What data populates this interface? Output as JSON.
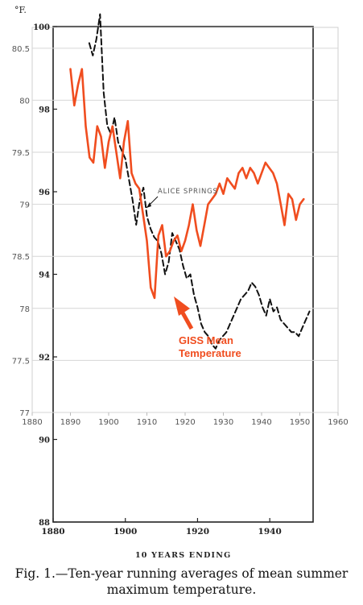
{
  "chart_data": {
    "type": "line",
    "unit_label": "°F.",
    "xlabel": "10 YEARS ENDING",
    "outer_axis": {
      "x_ticks": [
        1880,
        1900,
        1920,
        1940
      ],
      "y_ticks": [
        88,
        90,
        92,
        94,
        96,
        98,
        100
      ],
      "ylim": [
        88,
        100
      ],
      "xlim": [
        1880,
        1952
      ]
    },
    "inner_axis": {
      "x_ticks": [
        1880,
        1890,
        1900,
        1910,
        1920,
        1930,
        1940,
        1950,
        1960
      ],
      "y_ticks": [
        77,
        77.5,
        78,
        78.5,
        79,
        79.5,
        80,
        80.5
      ],
      "ylim": [
        77,
        80.7
      ],
      "xlim": [
        1880,
        1960
      ]
    },
    "series": [
      {
        "name": "ALICE SPRINGS",
        "axis": "outer",
        "style": "dashed",
        "color": "#111111",
        "x": [
          1890,
          1891,
          1892,
          1893,
          1894,
          1895,
          1896,
          1897,
          1898,
          1899,
          1900,
          1901,
          1902,
          1903,
          1904,
          1905,
          1906,
          1907,
          1908,
          1909,
          1910,
          1911,
          1912,
          1913,
          1914,
          1915,
          1916,
          1917,
          1918,
          1919,
          1920,
          1921,
          1922,
          1923,
          1924,
          1925,
          1926,
          1927,
          1928,
          1929,
          1930,
          1931,
          1932,
          1933,
          1934,
          1935,
          1936,
          1937,
          1938,
          1939,
          1940,
          1941,
          1942,
          1943,
          1944,
          1945,
          1946,
          1947,
          1948,
          1949,
          1950,
          1951
        ],
        "y": [
          99.6,
          99.3,
          99.7,
          100.3,
          98.4,
          97.6,
          97.4,
          97.8,
          97.2,
          97.0,
          96.8,
          96.3,
          95.8,
          95.2,
          95.8,
          96.1,
          95.4,
          95.1,
          94.9,
          94.8,
          94.5,
          94.0,
          94.3,
          95.0,
          94.8,
          94.6,
          94.2,
          93.9,
          94.0,
          93.5,
          93.2,
          92.8,
          92.6,
          92.5,
          92.3,
          92.2,
          92.4,
          92.5,
          92.6,
          92.8,
          93.0,
          93.2,
          93.4,
          93.5,
          93.6,
          93.8,
          93.7,
          93.5,
          93.2,
          93.0,
          93.4,
          93.1,
          93.2,
          92.9,
          92.8,
          92.7,
          92.6,
          92.6,
          92.5,
          92.7,
          92.9,
          93.1
        ]
      },
      {
        "name": "GISS Mean Temperature",
        "axis": "inner",
        "style": "solid",
        "color": "#f04d1f",
        "x": [
          1890,
          1891,
          1892,
          1893,
          1894,
          1895,
          1896,
          1897,
          1898,
          1899,
          1900,
          1901,
          1902,
          1903,
          1904,
          1905,
          1906,
          1907,
          1908,
          1909,
          1910,
          1911,
          1912,
          1913,
          1914,
          1915,
          1916,
          1917,
          1918,
          1919,
          1920,
          1921,
          1922,
          1923,
          1924,
          1925,
          1926,
          1927,
          1928,
          1929,
          1930,
          1931,
          1932,
          1933,
          1934,
          1935,
          1936,
          1937,
          1938,
          1939,
          1940,
          1941,
          1942,
          1943,
          1944,
          1945,
          1946,
          1947,
          1948,
          1949,
          1950,
          1951
        ],
        "y": [
          80.3,
          79.95,
          80.15,
          80.3,
          79.75,
          79.45,
          79.4,
          79.75,
          79.65,
          79.35,
          79.6,
          79.75,
          79.5,
          79.25,
          79.6,
          79.8,
          79.3,
          79.2,
          79.15,
          78.9,
          78.65,
          78.2,
          78.1,
          78.7,
          78.8,
          78.5,
          78.55,
          78.65,
          78.7,
          78.55,
          78.65,
          78.8,
          79.0,
          78.75,
          78.6,
          78.8,
          79.0,
          79.05,
          79.1,
          79.2,
          79.1,
          79.25,
          79.2,
          79.15,
          79.3,
          79.35,
          79.25,
          79.35,
          79.3,
          79.2,
          79.3,
          79.4,
          79.35,
          79.3,
          79.2,
          79.0,
          78.8,
          79.1,
          79.05,
          78.85,
          79.0,
          79.05
        ]
      }
    ],
    "annotations": [
      {
        "text": "ALICE SPRINGS"
      },
      {
        "text_lines": [
          "GISS Mean",
          "Temperature"
        ],
        "color": "#f04d1f"
      }
    ]
  },
  "caption": {
    "line1": "Fig. 1.—Ten-year running averages of mean summer",
    "line2": "maximum temperature."
  }
}
